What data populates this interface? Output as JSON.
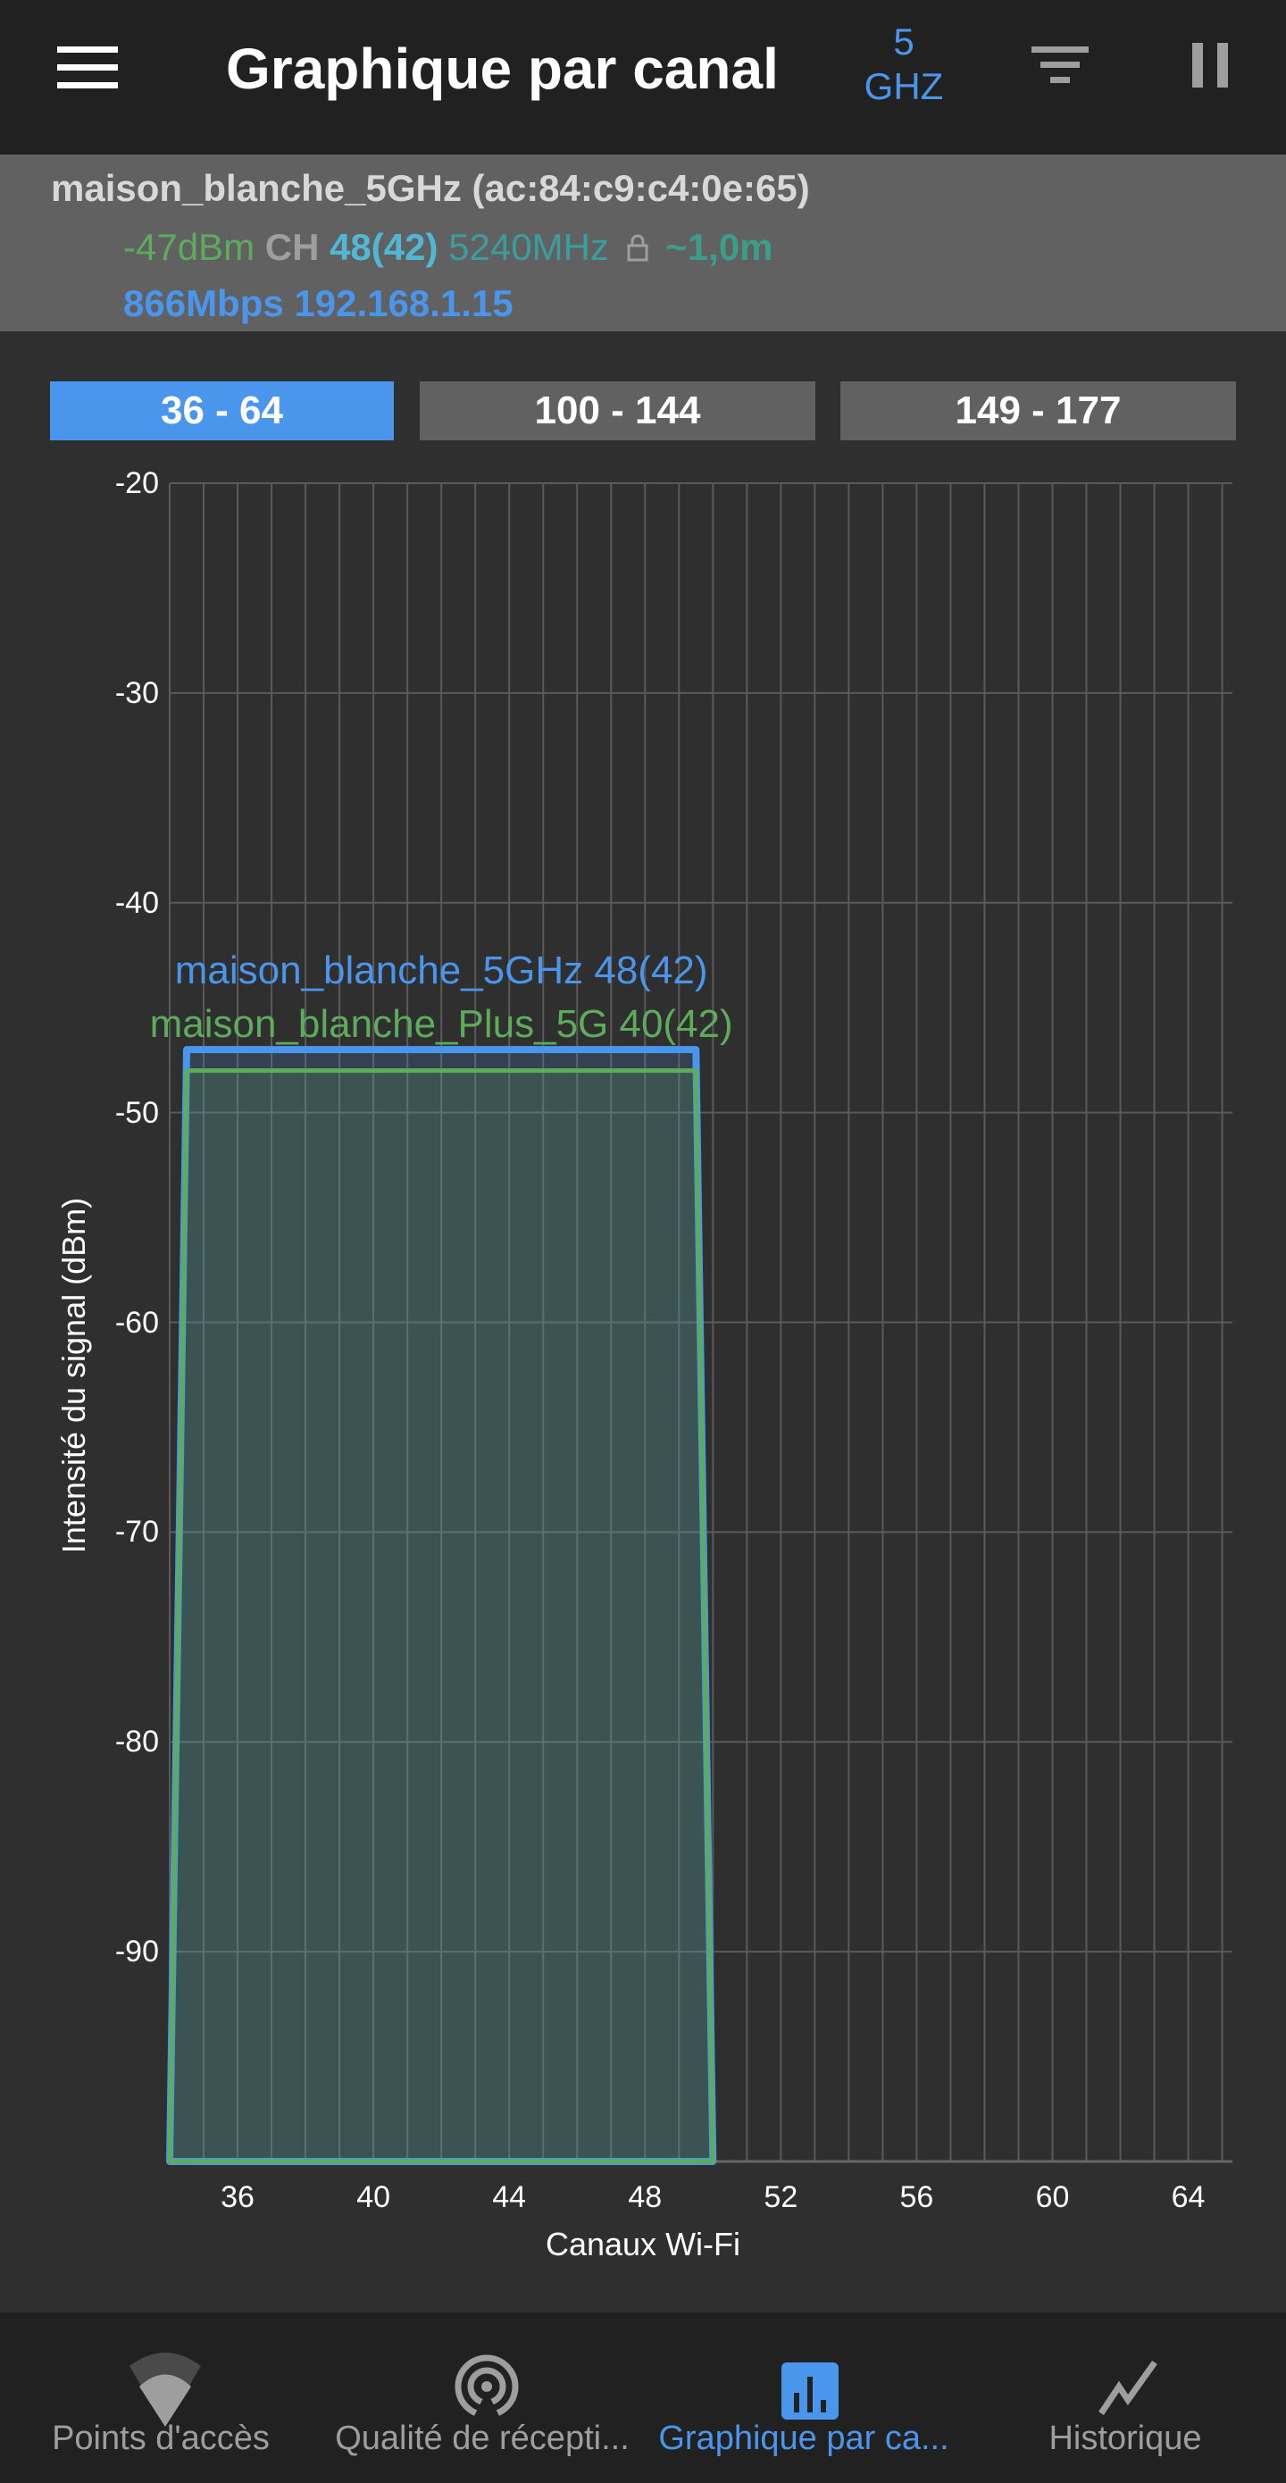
{
  "header": {
    "title": "Graphique par canal",
    "band_value": "5",
    "band_unit": "GHZ"
  },
  "info": {
    "ssid_bssid": "maison_blanche_5GHz (ac:84:c9:c4:0e:65)",
    "level": "-47dBm",
    "ch_label": "CH",
    "channel": "48(42)",
    "frequency": "5240MHz",
    "distance": "~1,0m",
    "speed_ip": "866Mbps 192.168.1.15",
    "colors": {
      "level": "#5cac5c",
      "ch_label": "#9e9e9e",
      "channel": "#4fb8d4",
      "frequency": "#3a9ea0",
      "distance": "#3a9e8a",
      "speed_ip": "#4b96ed"
    }
  },
  "tabs": [
    {
      "label": "36 - 64",
      "active": true
    },
    {
      "label": "100 - 144",
      "active": false
    },
    {
      "label": "149 - 177",
      "active": false
    }
  ],
  "chart_data": {
    "type": "area",
    "xlabel": "Canaux Wi-Fi",
    "ylabel": "Intensité du signal (dBm)",
    "xlim": [
      34,
      65.3
    ],
    "ylim": [
      -100,
      -20
    ],
    "xticks": [
      36,
      40,
      44,
      48,
      52,
      56,
      60,
      64
    ],
    "yticks": [
      -20,
      -30,
      -40,
      -50,
      -60,
      -70,
      -80,
      -90
    ],
    "grid": true,
    "series": [
      {
        "name": "maison_blanche_5GHz 48(42)",
        "color": "#4b96ed",
        "level": -47,
        "channel_start": 34,
        "channel_end": 50
      },
      {
        "name": "maison_blanche_Plus_5G 40(42)",
        "color": "#5cac5c",
        "level": -48,
        "channel_start": 34,
        "channel_end": 50
      }
    ]
  },
  "nav": [
    {
      "label": "Points d'accès",
      "icon": "wifi-icon",
      "active": false
    },
    {
      "label": "Qualité de récepti...",
      "icon": "signal-quality-icon",
      "active": false
    },
    {
      "label": "Graphique par ca...",
      "icon": "bar-chart-icon",
      "active": true
    },
    {
      "label": "Historique",
      "icon": "history-line-icon",
      "active": false
    }
  ]
}
